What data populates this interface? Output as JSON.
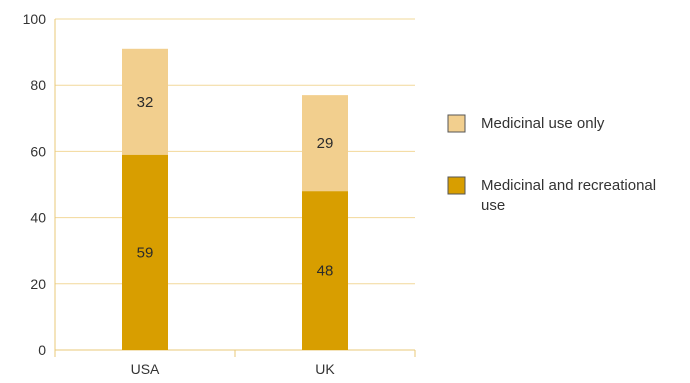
{
  "chart_data": {
    "type": "bar",
    "stacked": true,
    "categories": [
      "USA",
      "UK"
    ],
    "series": [
      {
        "name": "Medicinal and recreational use",
        "values": [
          59,
          48
        ],
        "color": "#D89E00"
      },
      {
        "name": "Medicinal use only",
        "values": [
          32,
          29
        ],
        "color": "#F2CF8E"
      }
    ],
    "title": "",
    "xlabel": "",
    "ylabel": "",
    "ylim": [
      0,
      100
    ],
    "yticks": [
      0,
      20,
      40,
      60,
      80,
      100
    ],
    "grid": true,
    "grid_color": "#F2D89A",
    "axis_color": "#E8C878",
    "legend": {
      "position": "right",
      "items": [
        {
          "name": "Medicinal use only",
          "color": "#F2CF8E",
          "lines": [
            "Medicinal use only"
          ]
        },
        {
          "name": "Medicinal and recreational use",
          "color": "#D89E00",
          "lines": [
            "Medicinal and recreational",
            "use"
          ]
        }
      ]
    }
  }
}
